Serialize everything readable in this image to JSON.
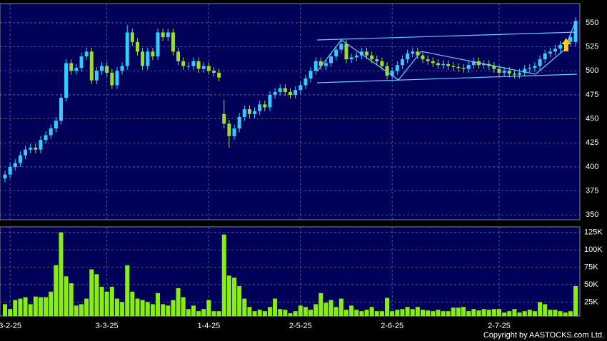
{
  "chart_data": {
    "type": "candlestick",
    "categories": [
      null,
      "3-2-25",
      null,
      null,
      null,
      null,
      null,
      null,
      null,
      null,
      null,
      null,
      null,
      null,
      null,
      null,
      null,
      null,
      null,
      null,
      "3-3-25",
      null,
      null,
      null,
      null,
      null,
      null,
      null,
      null,
      null,
      null,
      null,
      null,
      null,
      null,
      null,
      null,
      null,
      null,
      null,
      "1-4-25",
      null,
      null,
      null,
      null,
      null,
      null,
      null,
      null,
      null,
      null,
      null,
      null,
      null,
      null,
      null,
      null,
      null,
      "2-5-25",
      null,
      null,
      null,
      null,
      null,
      null,
      null,
      null,
      null,
      null,
      null,
      null,
      null,
      null,
      null,
      null,
      null,
      "2-6-25",
      null,
      null,
      null,
      null,
      null,
      null,
      null,
      null,
      null,
      null,
      null,
      null,
      null,
      null,
      null,
      null,
      null,
      null,
      null,
      null,
      "2-7-25",
      null,
      null,
      null,
      null,
      null,
      null,
      null,
      null,
      null,
      null,
      null,
      null,
      null,
      null,
      null
    ],
    "open": [
      388,
      392,
      400,
      404,
      412,
      418,
      420,
      418,
      428,
      433,
      440,
      448,
      472,
      508,
      500,
      503,
      515,
      520,
      490,
      500,
      505,
      498,
      485,
      500,
      505,
      540,
      530,
      520,
      505,
      520,
      515,
      540,
      535,
      540,
      520,
      510,
      505,
      505,
      510,
      502,
      505,
      500,
      498,
      455,
      445,
      432,
      440,
      452,
      460,
      455,
      458,
      465,
      462,
      475,
      478,
      482,
      478,
      475,
      480,
      485,
      492,
      500,
      510,
      505,
      508,
      515,
      522,
      528,
      512,
      514,
      516,
      520,
      516,
      512,
      510,
      505,
      495,
      500,
      506,
      512,
      518,
      520,
      516,
      512,
      510,
      508,
      506,
      507,
      505,
      504,
      503,
      502,
      506,
      510,
      506,
      507,
      505,
      502,
      498,
      500,
      497,
      496,
      498,
      502,
      503,
      505,
      512,
      518,
      520,
      523,
      527,
      530,
      530
    ],
    "high": [
      396,
      404,
      408,
      416,
      422,
      424,
      424,
      432,
      437,
      444,
      452,
      476,
      512,
      512,
      507,
      519,
      524,
      524,
      504,
      509,
      509,
      502,
      504,
      509,
      548,
      544,
      534,
      524,
      524,
      524,
      544,
      544,
      544,
      544,
      524,
      514,
      509,
      514,
      514,
      509,
      509,
      504,
      502,
      470,
      449,
      444,
      456,
      464,
      464,
      462,
      469,
      469,
      479,
      482,
      486,
      486,
      482,
      484,
      489,
      496,
      504,
      514,
      514,
      512,
      519,
      526,
      532,
      532,
      518,
      520,
      524,
      524,
      520,
      516,
      514,
      509,
      504,
      510,
      516,
      522,
      524,
      524,
      520,
      516,
      514,
      512,
      511,
      511,
      509,
      508,
      507,
      510,
      514,
      514,
      511,
      511,
      509,
      506,
      504,
      504,
      501,
      502,
      506,
      507,
      509,
      516,
      522,
      524,
      527,
      531,
      534,
      539,
      556
    ],
    "low": [
      384,
      388,
      396,
      400,
      408,
      414,
      414,
      414,
      424,
      429,
      436,
      444,
      468,
      496,
      496,
      499,
      511,
      486,
      486,
      496,
      494,
      481,
      481,
      496,
      501,
      526,
      516,
      501,
      501,
      511,
      511,
      531,
      531,
      516,
      506,
      501,
      501,
      501,
      498,
      498,
      496,
      494,
      489,
      440,
      420,
      428,
      436,
      448,
      451,
      451,
      454,
      458,
      458,
      471,
      474,
      474,
      471,
      471,
      476,
      481,
      488,
      496,
      501,
      501,
      504,
      511,
      518,
      508,
      508,
      510,
      512,
      512,
      508,
      506,
      501,
      491,
      491,
      496,
      502,
      508,
      514,
      512,
      508,
      506,
      504,
      502,
      502,
      501,
      500,
      499,
      498,
      498,
      502,
      502,
      502,
      501,
      498,
      494,
      494,
      493,
      492,
      492,
      494,
      498,
      499,
      501,
      508,
      514,
      516,
      519,
      523,
      526,
      526
    ],
    "close": [
      392,
      400,
      404,
      412,
      418,
      420,
      418,
      428,
      433,
      440,
      448,
      472,
      508,
      500,
      503,
      515,
      520,
      490,
      500,
      505,
      498,
      485,
      500,
      505,
      540,
      530,
      520,
      505,
      520,
      515,
      540,
      535,
      540,
      520,
      510,
      505,
      505,
      510,
      502,
      505,
      500,
      498,
      493,
      445,
      432,
      440,
      452,
      460,
      455,
      458,
      465,
      462,
      475,
      478,
      482,
      478,
      475,
      480,
      485,
      492,
      500,
      510,
      505,
      508,
      515,
      522,
      528,
      512,
      514,
      516,
      520,
      516,
      512,
      510,
      505,
      495,
      500,
      506,
      512,
      518,
      520,
      516,
      512,
      510,
      508,
      506,
      507,
      505,
      504,
      503,
      502,
      506,
      510,
      506,
      507,
      505,
      502,
      498,
      500,
      497,
      496,
      498,
      502,
      503,
      505,
      512,
      518,
      520,
      523,
      527,
      530,
      535,
      552
    ],
    "up_color": "#33ccff",
    "down_color": "#99dd33",
    "ylim": [
      345,
      570
    ],
    "yticks": [
      350,
      375,
      400,
      425,
      450,
      475,
      500,
      525,
      550
    ],
    "grid": true,
    "volume": {
      "color": "#88ee11",
      "values": [
        22000,
        15000,
        28000,
        30000,
        32000,
        22000,
        33000,
        32000,
        32000,
        40000,
        78000,
        125000,
        62000,
        52000,
        20000,
        22000,
        30000,
        72000,
        65000,
        47000,
        40000,
        47000,
        30000,
        25000,
        78000,
        40000,
        30000,
        28000,
        25000,
        22000,
        38000,
        22000,
        20000,
        28000,
        45000,
        32000,
        15000,
        20000,
        12000,
        15000,
        28000,
        12000,
        12000,
        122000,
        63000,
        60000,
        48000,
        30000,
        18000,
        12000,
        14000,
        12000,
        18000,
        30000,
        15000,
        14000,
        9000,
        12000,
        20000,
        18000,
        14000,
        22000,
        38000,
        24000,
        28000,
        18000,
        30000,
        14000,
        20000,
        14000,
        12000,
        14000,
        18000,
        12000,
        12000,
        31000,
        12000,
        14000,
        15000,
        18000,
        15000,
        18000,
        14000,
        13000,
        12000,
        14000,
        12000,
        12000,
        17000,
        17000,
        18000,
        12000,
        15000,
        13000,
        15000,
        14000,
        15000,
        15000,
        10000,
        12000,
        15000,
        10000,
        12000,
        14000,
        12000,
        25000,
        22000,
        14000,
        14000,
        12000,
        10000,
        12000,
        48000
      ],
      "ylim": [
        5000,
        133000
      ],
      "yticks": [
        {
          "value": 25000,
          "label": "25K"
        },
        {
          "value": 50000,
          "label": "50K"
        },
        {
          "value": 75000,
          "label": "75K"
        },
        {
          "value": 100000,
          "label": "100K"
        },
        {
          "value": 125000,
          "label": "125K"
        }
      ]
    },
    "copyright": "Copyright by AASTOCKS.com Ltd."
  }
}
